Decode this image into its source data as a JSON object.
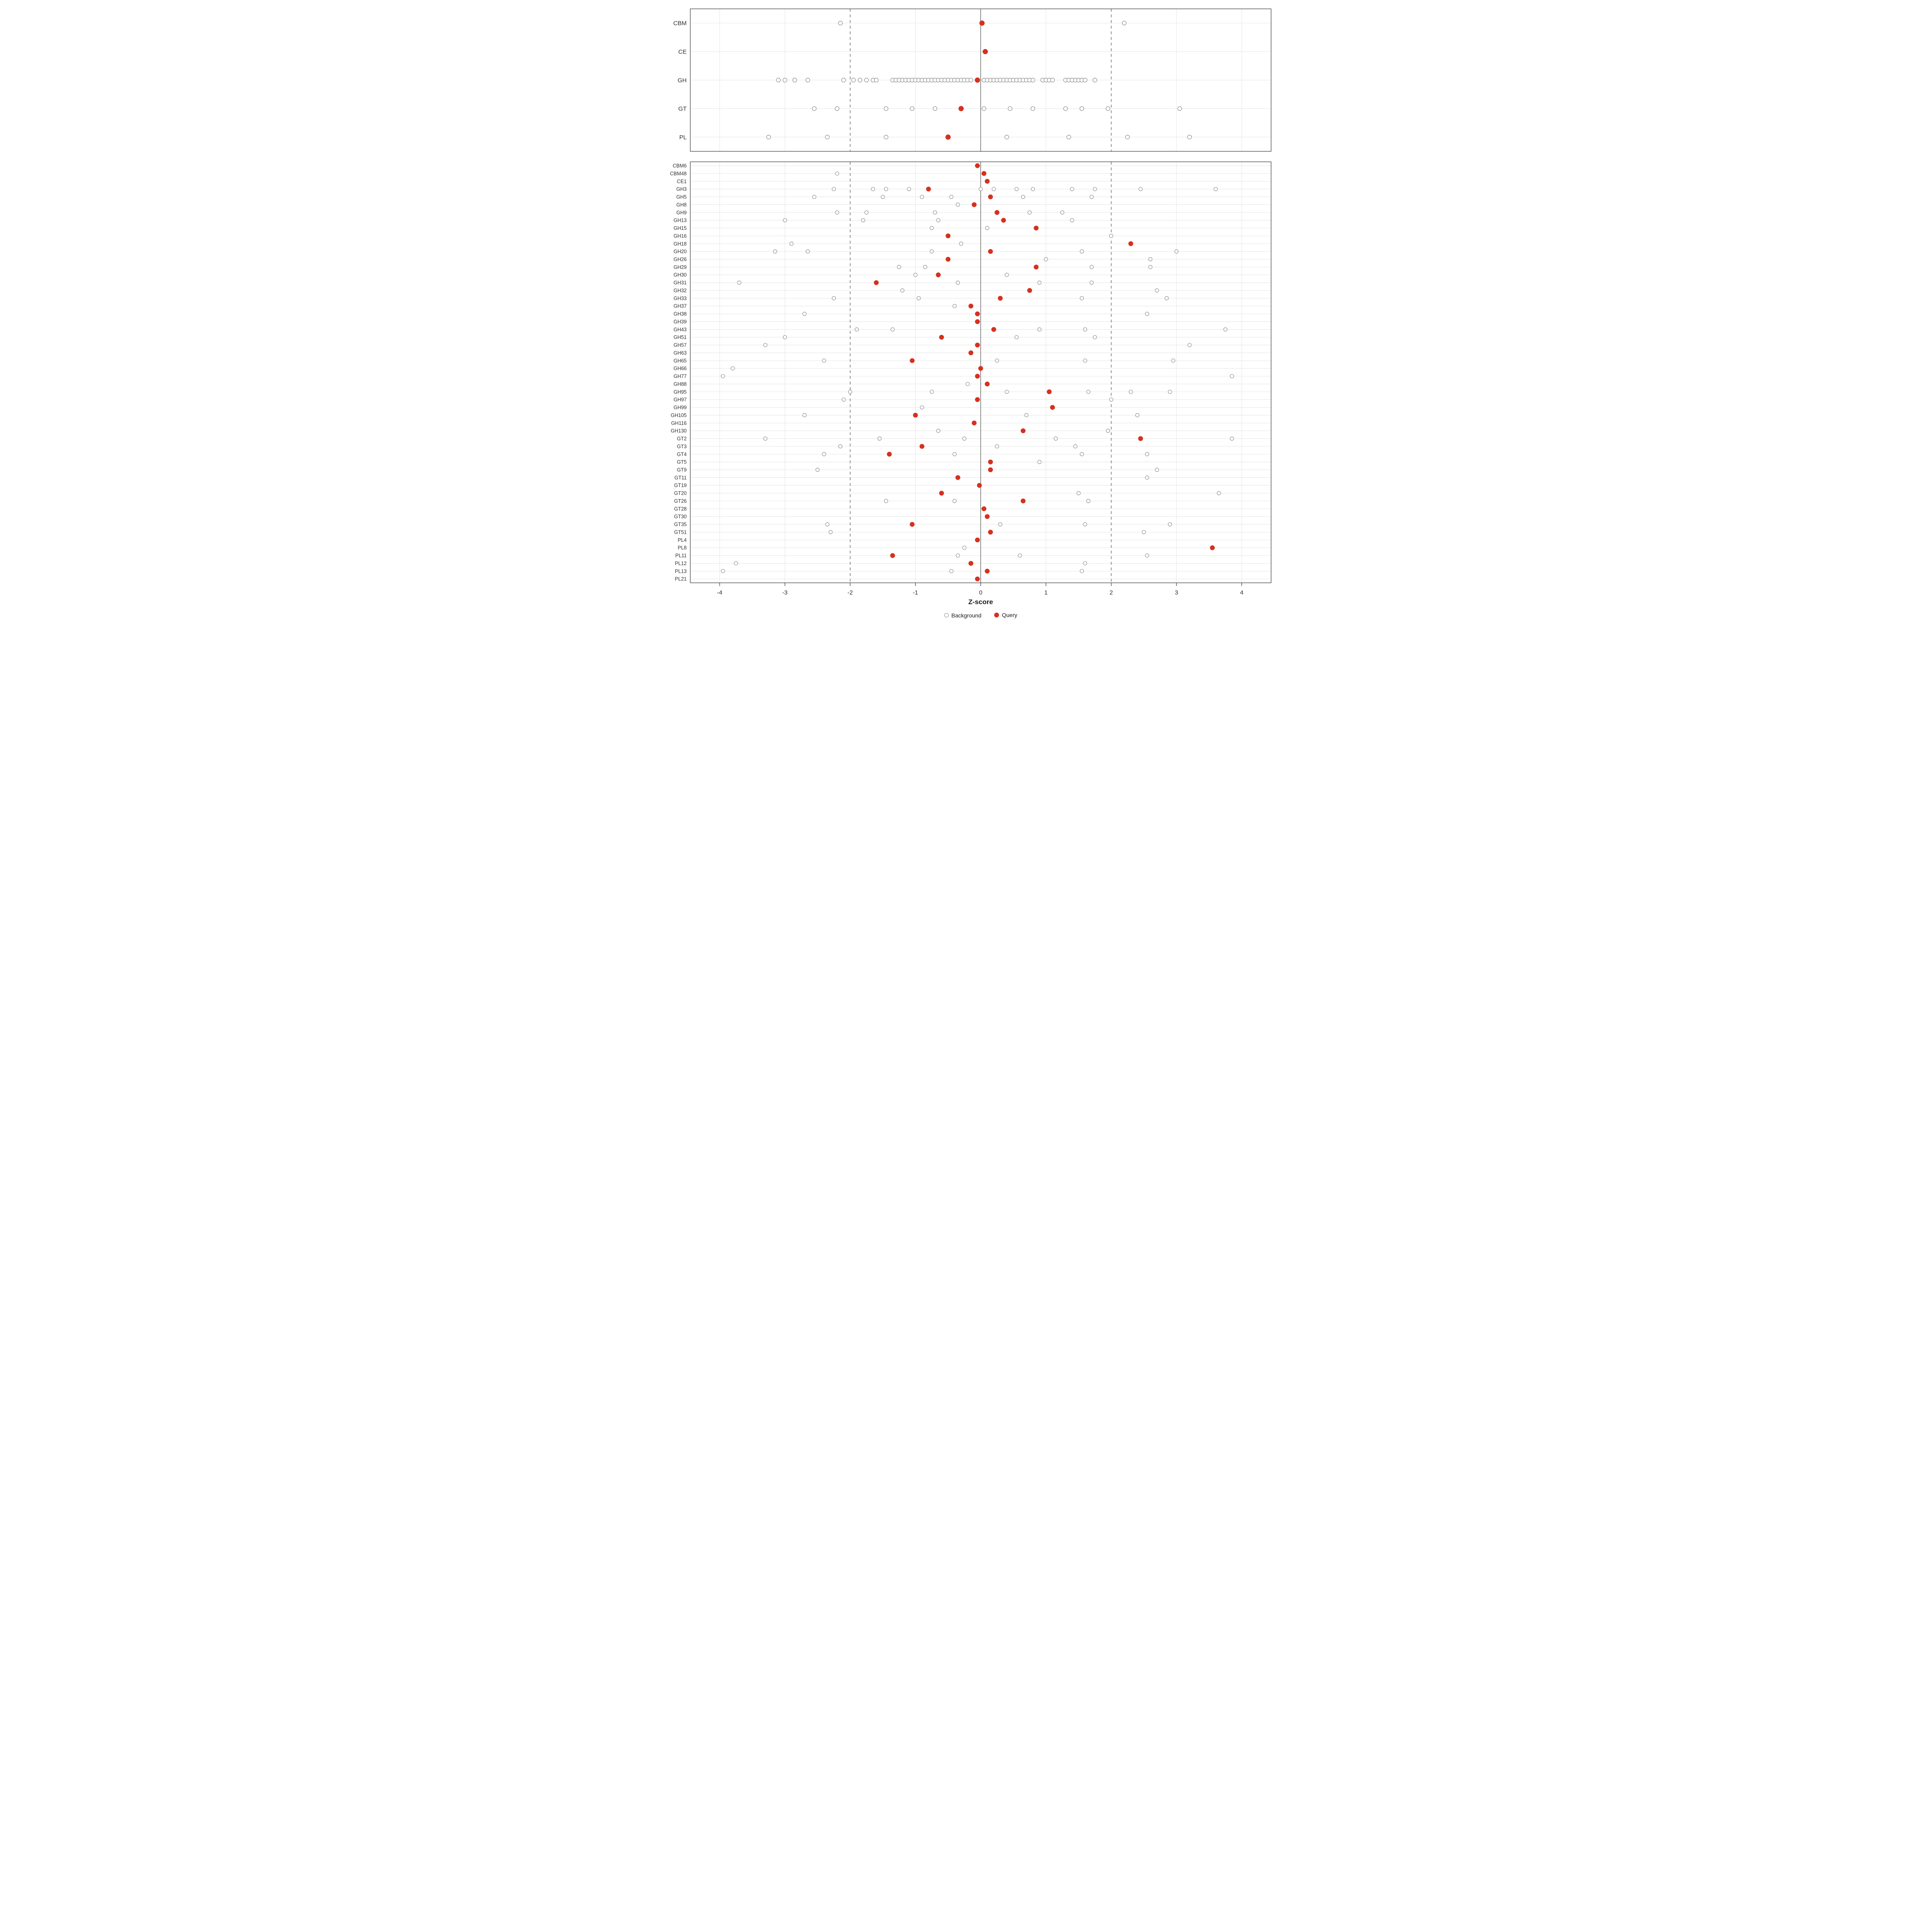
{
  "colors": {
    "query": "#d7301f",
    "background_stroke": "#8f8f8f",
    "grid": "#e4e4e4",
    "ref_line": "#4d4d4d",
    "panel_border": "#333333",
    "text": "#303030"
  },
  "chart_data": {
    "type": "scatter",
    "xlabel": "Z-score",
    "xlim": [
      -4.45,
      4.45
    ],
    "ticks": [
      -4,
      -3,
      -2,
      -1,
      0,
      1,
      2,
      3,
      4
    ],
    "reference_lines": {
      "solid": [
        0
      ],
      "dashed": [
        -2,
        2
      ]
    },
    "legend": [
      "Background",
      "Query"
    ],
    "legend_position": "bottom",
    "panels": [
      {
        "name": "class-summary",
        "rows": [
          {
            "label": "CBM",
            "background": [
              -2.15,
              2.2
            ],
            "query": [
              0.02
            ]
          },
          {
            "label": "CE",
            "background": [],
            "query": [
              0.07
            ]
          },
          {
            "label": "GH",
            "background": [
              -3.1,
              -3.0,
              -2.85,
              -2.65,
              -2.1,
              -1.95,
              -1.85,
              -1.75,
              -1.65,
              -1.6,
              -1.35,
              -1.3,
              -1.25,
              -1.2,
              -1.15,
              -1.1,
              -1.05,
              -1.0,
              -0.95,
              -0.9,
              -0.85,
              -0.8,
              -0.75,
              -0.7,
              -0.65,
              -0.6,
              -0.55,
              -0.5,
              -0.45,
              -0.4,
              -0.35,
              -0.3,
              -0.25,
              -0.2,
              -0.15,
              0.05,
              0.1,
              0.15,
              0.2,
              0.25,
              0.3,
              0.35,
              0.4,
              0.45,
              0.5,
              0.55,
              0.6,
              0.65,
              0.7,
              0.75,
              0.8,
              0.95,
              1.0,
              1.05,
              1.1,
              1.3,
              1.35,
              1.4,
              1.45,
              1.5,
              1.55,
              1.6,
              1.75
            ],
            "query": [
              -0.05
            ]
          },
          {
            "label": "GT",
            "background": [
              -2.55,
              -2.2,
              -1.45,
              -1.05,
              -0.7,
              0.05,
              0.45,
              0.8,
              1.3,
              1.55,
              1.95,
              3.05
            ],
            "query": [
              -0.3
            ]
          },
          {
            "label": "PL",
            "background": [
              -3.25,
              -2.35,
              -1.45,
              0.4,
              1.35,
              2.25,
              3.2
            ],
            "query": [
              -0.5
            ]
          }
        ]
      },
      {
        "name": "family-detail",
        "rows": [
          {
            "label": "CBM6",
            "background": [],
            "query": [
              -0.05
            ]
          },
          {
            "label": "CBM48",
            "background": [
              -2.2
            ],
            "query": [
              0.05
            ]
          },
          {
            "label": "CE1",
            "background": [],
            "query": [
              0.1
            ]
          },
          {
            "label": "GH3",
            "background": [
              -2.25,
              -1.65,
              -1.45,
              -1.1,
              0.0,
              0.2,
              0.55,
              0.8,
              1.4,
              1.75,
              2.45,
              3.6
            ],
            "query": [
              -0.8
            ]
          },
          {
            "label": "GH5",
            "background": [
              -2.55,
              -1.5,
              -0.9,
              -0.45,
              0.65,
              1.7
            ],
            "query": [
              0.15
            ]
          },
          {
            "label": "GH8",
            "background": [
              -0.35
            ],
            "query": [
              -0.1
            ]
          },
          {
            "label": "GH9",
            "background": [
              -2.2,
              -1.75,
              -0.7,
              0.75,
              1.25
            ],
            "query": [
              0.25
            ]
          },
          {
            "label": "GH13",
            "background": [
              -3.0,
              -1.8,
              -0.65,
              1.4
            ],
            "query": [
              0.35
            ]
          },
          {
            "label": "GH15",
            "background": [
              -0.75,
              0.1
            ],
            "query": [
              0.85
            ]
          },
          {
            "label": "GH16",
            "background": [
              2.0
            ],
            "query": [
              -0.5
            ]
          },
          {
            "label": "GH18",
            "background": [
              -2.9,
              -0.3
            ],
            "query": [
              2.3
            ]
          },
          {
            "label": "GH20",
            "background": [
              -3.15,
              -2.65,
              -0.75,
              1.55,
              3.0
            ],
            "query": [
              0.15
            ]
          },
          {
            "label": "GH26",
            "background": [
              1.0,
              2.6
            ],
            "query": [
              -0.5
            ]
          },
          {
            "label": "GH29",
            "background": [
              -1.25,
              -0.85,
              1.7,
              2.6
            ],
            "query": [
              0.85
            ]
          },
          {
            "label": "GH30",
            "background": [
              -1.0,
              0.4
            ],
            "query": [
              -0.65
            ]
          },
          {
            "label": "GH31",
            "background": [
              -3.7,
              -0.35,
              0.9,
              1.7
            ],
            "query": [
              -1.6
            ]
          },
          {
            "label": "GH32",
            "background": [
              -1.2,
              2.7
            ],
            "query": [
              0.75
            ]
          },
          {
            "label": "GH33",
            "background": [
              -2.25,
              -0.95,
              1.55,
              2.85
            ],
            "query": [
              0.3
            ]
          },
          {
            "label": "GH37",
            "background": [
              -0.4
            ],
            "query": [
              -0.15
            ]
          },
          {
            "label": "GH38",
            "background": [
              -2.7,
              2.55
            ],
            "query": [
              -0.05
            ]
          },
          {
            "label": "GH39",
            "background": [],
            "query": [
              -0.05
            ]
          },
          {
            "label": "GH43",
            "background": [
              -1.9,
              -1.35,
              0.9,
              1.6,
              3.75
            ],
            "query": [
              0.2
            ]
          },
          {
            "label": "GH51",
            "background": [
              -3.0,
              0.55,
              1.75
            ],
            "query": [
              -0.6
            ]
          },
          {
            "label": "GH57",
            "background": [
              -3.3,
              3.2
            ],
            "query": [
              -0.05
            ]
          },
          {
            "label": "GH63",
            "background": [],
            "query": [
              -0.15
            ]
          },
          {
            "label": "GH65",
            "background": [
              -2.4,
              0.25,
              1.6,
              2.95
            ],
            "query": [
              -1.05
            ]
          },
          {
            "label": "GH66",
            "background": [
              -3.8
            ],
            "query": [
              0.0
            ]
          },
          {
            "label": "GH77",
            "background": [
              -3.95,
              3.85
            ],
            "query": [
              -0.05
            ]
          },
          {
            "label": "GH88",
            "background": [
              -0.2
            ],
            "query": [
              0.1
            ]
          },
          {
            "label": "GH95",
            "background": [
              -2.0,
              -0.75,
              0.4,
              1.65,
              2.3,
              2.9
            ],
            "query": [
              1.05
            ]
          },
          {
            "label": "GH97",
            "background": [
              -2.1,
              2.0
            ],
            "query": [
              -0.05
            ]
          },
          {
            "label": "GH99",
            "background": [
              -0.9
            ],
            "query": [
              1.1
            ]
          },
          {
            "label": "GH105",
            "background": [
              -2.7,
              0.7,
              2.4
            ],
            "query": [
              -1.0
            ]
          },
          {
            "label": "GH116",
            "background": [],
            "query": [
              -0.1
            ]
          },
          {
            "label": "GH130",
            "background": [
              -0.65,
              1.95
            ],
            "query": [
              0.65
            ]
          },
          {
            "label": "GT2",
            "background": [
              -3.3,
              -1.55,
              -0.25,
              1.15,
              3.85
            ],
            "query": [
              2.45
            ]
          },
          {
            "label": "GT3",
            "background": [
              -2.15,
              0.25,
              1.45
            ],
            "query": [
              -0.9
            ]
          },
          {
            "label": "GT4",
            "background": [
              -2.4,
              -0.4,
              1.55,
              2.55
            ],
            "query": [
              -1.4
            ]
          },
          {
            "label": "GT5",
            "background": [
              0.9
            ],
            "query": [
              0.15
            ]
          },
          {
            "label": "GT9",
            "background": [
              -2.5,
              2.7
            ],
            "query": [
              0.15
            ]
          },
          {
            "label": "GT11",
            "background": [
              2.55
            ],
            "query": [
              -0.35
            ]
          },
          {
            "label": "GT19",
            "background": [],
            "query": [
              -0.02
            ]
          },
          {
            "label": "GT20",
            "background": [
              1.5,
              3.65
            ],
            "query": [
              -0.6
            ]
          },
          {
            "label": "GT26",
            "background": [
              -1.45,
              -0.4,
              1.65
            ],
            "query": [
              0.65
            ]
          },
          {
            "label": "GT28",
            "background": [],
            "query": [
              0.05
            ]
          },
          {
            "label": "GT30",
            "background": [],
            "query": [
              0.1
            ]
          },
          {
            "label": "GT35",
            "background": [
              -2.35,
              0.3,
              1.6,
              2.9
            ],
            "query": [
              -1.05
            ]
          },
          {
            "label": "GT51",
            "background": [
              -2.3,
              2.5
            ],
            "query": [
              0.15
            ]
          },
          {
            "label": "PL4",
            "background": [],
            "query": [
              -0.05
            ]
          },
          {
            "label": "PL8",
            "background": [
              -0.25
            ],
            "query": [
              3.55
            ]
          },
          {
            "label": "PL11",
            "background": [
              -0.35,
              0.6,
              2.55
            ],
            "query": [
              -1.35
            ]
          },
          {
            "label": "PL12",
            "background": [
              -3.75,
              1.6
            ],
            "query": [
              -0.15
            ]
          },
          {
            "label": "PL13",
            "background": [
              -3.95,
              -0.45,
              1.55
            ],
            "query": [
              0.1
            ]
          },
          {
            "label": "PL21",
            "background": [],
            "query": [
              -0.05
            ]
          }
        ]
      }
    ]
  }
}
